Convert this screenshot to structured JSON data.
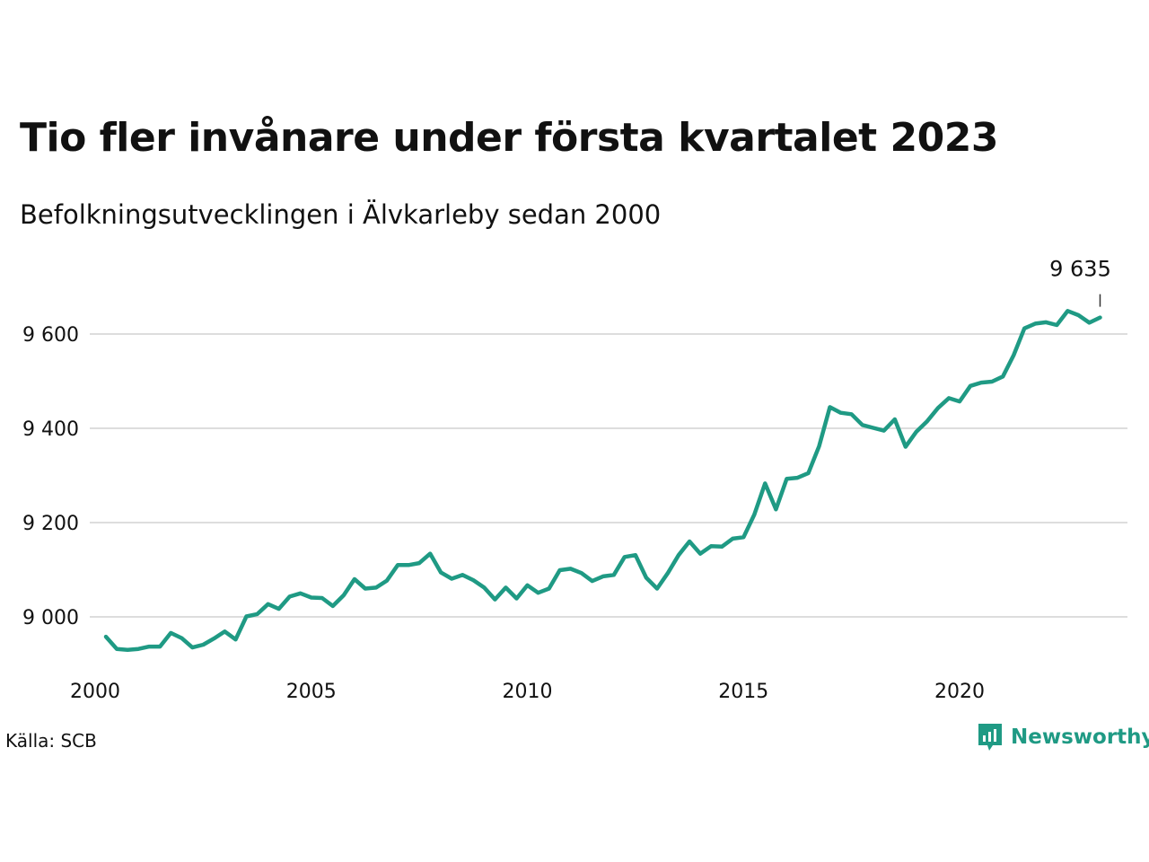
{
  "title": "Tio fler invånare under första kvartalet 2023",
  "subtitle": "Befolkningsutvecklingen i Älvkarleby sedan 2000",
  "source": "Källa: SCB",
  "brand": {
    "name": "Newsworthy",
    "icon": "newsworthy-logo-icon"
  },
  "colors": {
    "line": "#1f9a84",
    "grid": "#dddddd",
    "text": "#111111"
  },
  "chart_data": {
    "type": "line",
    "title": "Tio fler invånare under första kvartalet 2023",
    "subtitle": "Befolkningsutvecklingen i Älvkarleby sedan 2000",
    "xlabel": "",
    "ylabel": "",
    "xlim": [
      2000,
      2024
    ],
    "ylim": [
      8880,
      9700
    ],
    "x_ticks": [
      2000,
      2005,
      2010,
      2015,
      2020
    ],
    "x_tick_labels": [
      "2000",
      "2005",
      "2010",
      "2015",
      "2020"
    ],
    "y_ticks": [
      9000,
      9200,
      9400,
      9600
    ],
    "y_tick_labels": [
      "9 000",
      "9 200",
      "9 400",
      "9 600"
    ],
    "grid": "horizontal",
    "end_label": "9 635",
    "series": [
      {
        "name": "",
        "x": [
          2000.25,
          2000.5,
          2000.75,
          2001.0,
          2001.25,
          2001.5,
          2001.75,
          2002.0,
          2002.25,
          2002.5,
          2002.75,
          2003.0,
          2003.25,
          2003.5,
          2003.75,
          2004.0,
          2004.25,
          2004.5,
          2004.75,
          2005.0,
          2005.25,
          2005.5,
          2005.75,
          2006.0,
          2006.25,
          2006.5,
          2006.75,
          2007.0,
          2007.25,
          2007.5,
          2007.75,
          2008.0,
          2008.25,
          2008.5,
          2008.75,
          2009.0,
          2009.25,
          2009.5,
          2009.75,
          2010.0,
          2010.25,
          2010.5,
          2010.75,
          2011.0,
          2011.25,
          2011.5,
          2011.75,
          2012.0,
          2012.25,
          2012.5,
          2012.75,
          2013.0,
          2013.25,
          2013.5,
          2013.75,
          2014.0,
          2014.25,
          2014.5,
          2014.75,
          2015.0,
          2015.25,
          2015.5,
          2015.75,
          2016.0,
          2016.25,
          2016.5,
          2016.75,
          2017.0,
          2017.25,
          2017.5,
          2017.75,
          2018.0,
          2018.25,
          2018.5,
          2018.75,
          2019.0,
          2019.25,
          2019.5,
          2019.75,
          2020.0,
          2020.25,
          2020.5,
          2020.75,
          2021.0,
          2021.25,
          2021.5,
          2021.75,
          2022.0,
          2022.25,
          2022.5,
          2022.75,
          2023.0,
          2023.25
        ],
        "values": [
          8958,
          8932,
          8930,
          8932,
          8937,
          8937,
          8966,
          8955,
          8935,
          8941,
          8954,
          8969,
          8952,
          9001,
          9006,
          9027,
          9017,
          9043,
          9050,
          9041,
          9040,
          9023,
          9046,
          9080,
          9060,
          9062,
          9077,
          9110,
          9110,
          9114,
          9134,
          9094,
          9081,
          9089,
          9078,
          9062,
          9037,
          9062,
          9039,
          9067,
          9051,
          9060,
          9099,
          9102,
          9093,
          9076,
          9086,
          9089,
          9127,
          9131,
          9083,
          9060,
          9093,
          9131,
          9160,
          9134,
          9150,
          9149,
          9166,
          9169,
          9217,
          9283,
          9228,
          9293,
          9295,
          9305,
          9362,
          9445,
          9433,
          9430,
          9407,
          9401,
          9395,
          9419,
          9361,
          9393,
          9415,
          9443,
          9464,
          9457,
          9490,
          9497,
          9499,
          9510,
          9555,
          9612,
          9622,
          9625,
          9619,
          9649,
          9640,
          9624,
          9635
        ]
      }
    ]
  }
}
